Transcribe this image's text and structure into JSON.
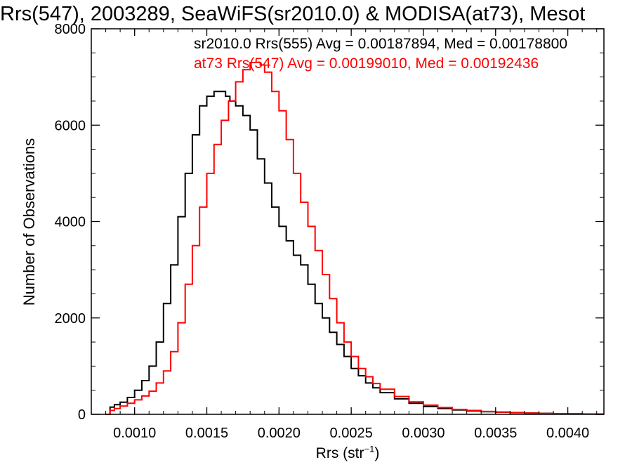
{
  "chart_data": {
    "type": "line",
    "title": "Rrs(547), 2003289, SeaWiFS(sr2010.0) & MODISA(at73), Mesot",
    "xlabel_main": "Rrs (str",
    "xlabel_sup": "−1",
    "xlabel_tail": ")",
    "ylabel": "Number of Observations",
    "xlim": [
      0.0007,
      0.00425
    ],
    "ylim": [
      0,
      8000
    ],
    "x_ticks": [
      {
        "value": 0.001,
        "label": "0.0010"
      },
      {
        "value": 0.0015,
        "label": "0.0015"
      },
      {
        "value": 0.002,
        "label": "0.0020"
      },
      {
        "value": 0.0025,
        "label": "0.0025"
      },
      {
        "value": 0.003,
        "label": "0.0030"
      },
      {
        "value": 0.0035,
        "label": "0.0035"
      },
      {
        "value": 0.004,
        "label": "0.0040"
      }
    ],
    "y_ticks": [
      {
        "value": 0,
        "label": "0"
      },
      {
        "value": 2000,
        "label": "2000"
      },
      {
        "value": 4000,
        "label": "4000"
      },
      {
        "value": 6000,
        "label": "6000"
      },
      {
        "value": 8000,
        "label": "8000"
      }
    ],
    "grid": false,
    "annotations": [
      {
        "text": "sr2010.0 Rrs(555) Avg = 0.00187894, Med = 0.00178800",
        "color": "#000000"
      },
      {
        "text": "at73 Rrs(547) Avg = 0.00199010, Med = 0.00192436",
        "color": "#ff0000"
      }
    ],
    "series": [
      {
        "color": "#000000",
        "x": [
          0.0008,
          0.00083,
          0.00086,
          0.0009,
          0.00095,
          0.001,
          0.00105,
          0.0011,
          0.00115,
          0.0012,
          0.00125,
          0.0013,
          0.00135,
          0.0014,
          0.00145,
          0.0015,
          0.00155,
          0.0016,
          0.00163,
          0.00166,
          0.0017,
          0.00175,
          0.0018,
          0.00185,
          0.0019,
          0.00195,
          0.002,
          0.00205,
          0.0021,
          0.00215,
          0.0022,
          0.00225,
          0.0023,
          0.00235,
          0.0024,
          0.00245,
          0.0025,
          0.00255,
          0.0026,
          0.00265,
          0.0027,
          0.0028,
          0.0029,
          0.003,
          0.0031,
          0.0032,
          0.0033,
          0.0034,
          0.0035,
          0.0036,
          0.0037,
          0.0038,
          0.0039,
          0.004,
          0.0041,
          0.0042
        ],
        "values": [
          0,
          150,
          200,
          250,
          350,
          500,
          700,
          1000,
          1500,
          2300,
          3100,
          4100,
          5000,
          5800,
          6400,
          6600,
          6700,
          6700,
          6600,
          6500,
          6400,
          6200,
          5900,
          5300,
          4800,
          4300,
          3900,
          3600,
          3300,
          3100,
          2700,
          2300,
          2000,
          1700,
          1450,
          1200,
          950,
          800,
          650,
          550,
          450,
          320,
          230,
          160,
          120,
          90,
          70,
          55,
          45,
          35,
          25,
          20,
          15,
          10,
          8,
          5
        ]
      },
      {
        "color": "#ff0000",
        "x": [
          0.0008,
          0.00083,
          0.00086,
          0.0009,
          0.00095,
          0.001,
          0.00105,
          0.0011,
          0.00115,
          0.0012,
          0.00125,
          0.0013,
          0.00135,
          0.0014,
          0.00145,
          0.0015,
          0.00155,
          0.0016,
          0.00165,
          0.0017,
          0.00175,
          0.0018,
          0.00183,
          0.00187,
          0.0019,
          0.00195,
          0.002,
          0.00205,
          0.0021,
          0.00215,
          0.0022,
          0.00225,
          0.0023,
          0.00235,
          0.0024,
          0.00245,
          0.0025,
          0.00255,
          0.0026,
          0.00265,
          0.0027,
          0.0028,
          0.0029,
          0.003,
          0.0031,
          0.0032,
          0.0033,
          0.0034,
          0.0035,
          0.0036,
          0.0037,
          0.0038,
          0.0039,
          0.004,
          0.0041,
          0.0042
        ],
        "values": [
          0,
          80,
          120,
          170,
          230,
          300,
          380,
          480,
          650,
          900,
          1300,
          1900,
          2700,
          3500,
          4300,
          5000,
          5600,
          6100,
          6500,
          6900,
          7150,
          7300,
          7300,
          7250,
          7100,
          6700,
          6300,
          5700,
          5000,
          4400,
          3900,
          3400,
          2900,
          2400,
          1900,
          1500,
          1200,
          950,
          780,
          640,
          520,
          370,
          260,
          190,
          140,
          100,
          80,
          60,
          45,
          35,
          25,
          18,
          13,
          10,
          7,
          5
        ]
      }
    ]
  }
}
